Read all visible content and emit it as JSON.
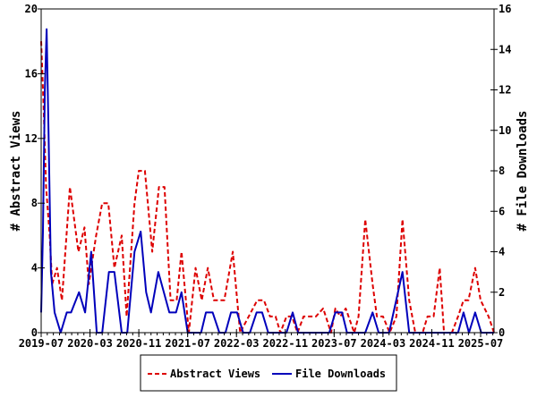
{
  "chart_data": {
    "type": "line",
    "title": "",
    "xlabel": "",
    "ylabel": "# Abstract Views",
    "y2label": "# File Downloads",
    "x_unit": "months since 2019-07",
    "xlim": [
      0,
      74.2
    ],
    "ylim": [
      0,
      20
    ],
    "y2lim": [
      0,
      16
    ],
    "x_ticks": [
      {
        "value": 0,
        "label": "2019-07"
      },
      {
        "value": 8,
        "label": "2020-03"
      },
      {
        "value": 16,
        "label": "2020-11"
      },
      {
        "value": 24,
        "label": "2021-07"
      },
      {
        "value": 32,
        "label": "2022-03"
      },
      {
        "value": 40,
        "label": "2022-11"
      },
      {
        "value": 48,
        "label": "2023-07"
      },
      {
        "value": 56,
        "label": "2024-03"
      },
      {
        "value": 64,
        "label": "2024-11"
      },
      {
        "value": 72,
        "label": "2025-07"
      }
    ],
    "y_ticks": [
      "0",
      "4",
      "8",
      "12",
      "16",
      "20"
    ],
    "y2_ticks": [
      "0",
      "2",
      "4",
      "6",
      "8",
      "10",
      "12",
      "14",
      "16"
    ],
    "grid": false,
    "legend_position": "bottom-center",
    "series": [
      {
        "name": "Abstract Views",
        "axis": "left",
        "color": "#dd0000",
        "style": "dashed",
        "points": [
          [
            0,
            18
          ],
          [
            0.4,
            14
          ],
          [
            0.8,
            9
          ],
          [
            1.4,
            6
          ],
          [
            1.8,
            3
          ],
          [
            2.6,
            4
          ],
          [
            3.4,
            2
          ],
          [
            4.7,
            9
          ],
          [
            6.1,
            5
          ],
          [
            7.1,
            6.5
          ],
          [
            7.8,
            3
          ],
          [
            9,
            6
          ],
          [
            10,
            8
          ],
          [
            11,
            8
          ],
          [
            12,
            4
          ],
          [
            13.2,
            6
          ],
          [
            14,
            1
          ],
          [
            15.3,
            8
          ],
          [
            16,
            10
          ],
          [
            17,
            10
          ],
          [
            18.2,
            5
          ],
          [
            19.3,
            9
          ],
          [
            20.2,
            9
          ],
          [
            21.2,
            2
          ],
          [
            22.2,
            2
          ],
          [
            23,
            5
          ],
          [
            24.2,
            0
          ],
          [
            25.3,
            4
          ],
          [
            26.3,
            2
          ],
          [
            27.3,
            4
          ],
          [
            28.3,
            2
          ],
          [
            30,
            2
          ],
          [
            31.4,
            5
          ],
          [
            32.6,
            0
          ],
          [
            34,
            1
          ],
          [
            35.4,
            2
          ],
          [
            36.5,
            2
          ],
          [
            37.5,
            1
          ],
          [
            38.4,
            1
          ],
          [
            39.2,
            0
          ],
          [
            40.2,
            1
          ],
          [
            41.1,
            1
          ],
          [
            42,
            0
          ],
          [
            43,
            1
          ],
          [
            44.2,
            1
          ],
          [
            45,
            1
          ],
          [
            46.2,
            1.5
          ],
          [
            47.5,
            0
          ],
          [
            48.2,
            1.5
          ],
          [
            49,
            1
          ],
          [
            49.9,
            1.5
          ],
          [
            51.3,
            0
          ],
          [
            52,
            1
          ],
          [
            53.1,
            7
          ],
          [
            54.3,
            3
          ],
          [
            55,
            1
          ],
          [
            56,
            1
          ],
          [
            57.1,
            0
          ],
          [
            58.2,
            1
          ],
          [
            59.2,
            7
          ],
          [
            60.3,
            2
          ],
          [
            61.3,
            0
          ],
          [
            62.5,
            0
          ],
          [
            63.3,
            1
          ],
          [
            64.3,
            1
          ],
          [
            65.3,
            4
          ],
          [
            66,
            0
          ],
          [
            67.3,
            0
          ],
          [
            68.3,
            1
          ],
          [
            69.2,
            2
          ],
          [
            70,
            2
          ],
          [
            71.1,
            4
          ],
          [
            72,
            2
          ],
          [
            73.3,
            1
          ],
          [
            74.2,
            0
          ]
        ]
      },
      {
        "name": "File Downloads",
        "axis": "right",
        "color": "#0000bb",
        "style": "solid",
        "points": [
          [
            0,
            1
          ],
          [
            0.3,
            5
          ],
          [
            0.6,
            12
          ],
          [
            0.9,
            15
          ],
          [
            1.2,
            10
          ],
          [
            1.6,
            3
          ],
          [
            2.2,
            1
          ],
          [
            3.2,
            0
          ],
          [
            4.2,
            1
          ],
          [
            4.9,
            1
          ],
          [
            6.2,
            2
          ],
          [
            7.2,
            1
          ],
          [
            8.2,
            4
          ],
          [
            9.1,
            0
          ],
          [
            10,
            0
          ],
          [
            11.1,
            3
          ],
          [
            12,
            3
          ],
          [
            13.2,
            0
          ],
          [
            14.1,
            0
          ],
          [
            15.3,
            4
          ],
          [
            16.3,
            5
          ],
          [
            17.2,
            2
          ],
          [
            18,
            1
          ],
          [
            19.2,
            3
          ],
          [
            21,
            1
          ],
          [
            22.1,
            1
          ],
          [
            23,
            2
          ],
          [
            24,
            0
          ],
          [
            26.2,
            0
          ],
          [
            27,
            1
          ],
          [
            28.1,
            1
          ],
          [
            29.2,
            0
          ],
          [
            30.2,
            0
          ],
          [
            31.1,
            1
          ],
          [
            32.1,
            1
          ],
          [
            33.1,
            0
          ],
          [
            34.2,
            0
          ],
          [
            35.3,
            1
          ],
          [
            36.2,
            1
          ],
          [
            37.2,
            0
          ],
          [
            40.2,
            0
          ],
          [
            41.2,
            1
          ],
          [
            42.1,
            0
          ],
          [
            47.2,
            0
          ],
          [
            48.2,
            1
          ],
          [
            49.3,
            1
          ],
          [
            50.1,
            0
          ],
          [
            53.1,
            0
          ],
          [
            54.3,
            1
          ],
          [
            55.3,
            0
          ],
          [
            57,
            0
          ],
          [
            59.2,
            3
          ],
          [
            60.3,
            0
          ],
          [
            68.3,
            0
          ],
          [
            69.2,
            1
          ],
          [
            70.1,
            0
          ],
          [
            71.1,
            1
          ],
          [
            72.1,
            0
          ],
          [
            74.2,
            0
          ]
        ]
      }
    ],
    "legend": [
      "Abstract Views",
      "File Downloads"
    ]
  }
}
